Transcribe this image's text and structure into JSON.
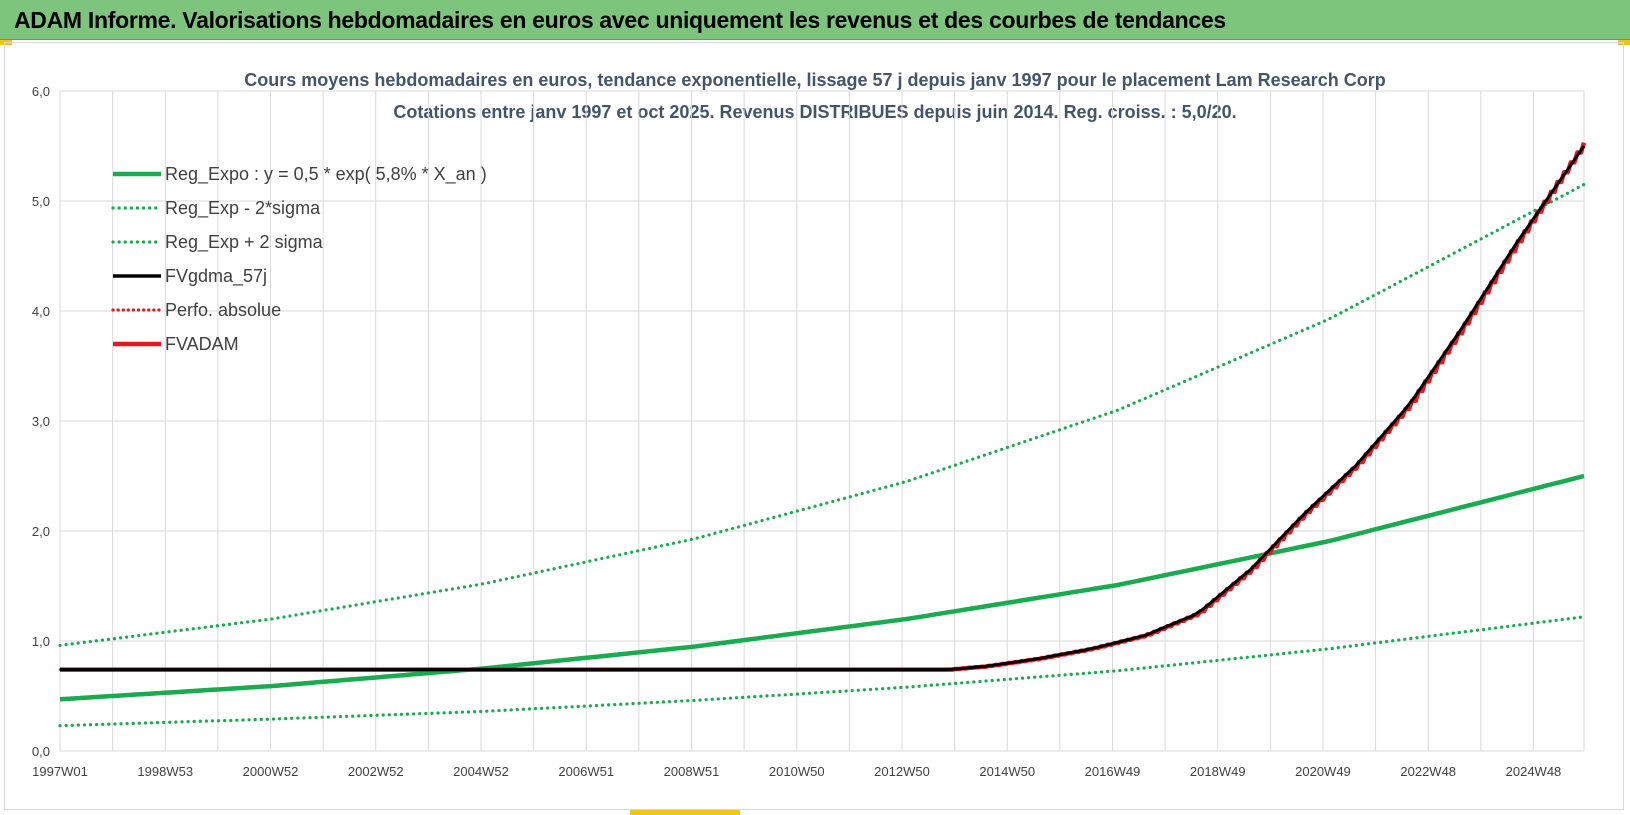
{
  "header": {
    "title": "ADAM Informe. Valorisations hebdomadaires en euros avec uniquement les revenus et des courbes de tendances"
  },
  "colors": {
    "header_bg": "#7dc47d",
    "green": "#1aaa50",
    "red": "#e31a1c",
    "black": "#000000",
    "title_text": "#44546a"
  },
  "chart_data": {
    "type": "line",
    "title": "Cours moyens hebdomadaires en euros, tendance exponentielle, lissage 57 j depuis janv 1997 pour le placement Lam Research Corp",
    "subtitle": "Cotations entre janv 1997 et oct 2025. Revenus DISTRIBUES depuis juin 2014. Reg. croiss. : 5,0/20.",
    "xlabel": "",
    "ylabel": "",
    "x_range": [
      1997.0,
      2025.8
    ],
    "ylim": [
      0,
      6
    ],
    "y_ticks": [
      "0,0",
      "1,0",
      "2,0",
      "3,0",
      "4,0",
      "5,0",
      "6,0"
    ],
    "x_tick_labels": [
      "1997W01",
      "1998W53",
      "2000W52",
      "2002W52",
      "2004W52",
      "2006W51",
      "2008W51",
      "2010W50",
      "2012W50",
      "2014W50",
      "2016W49",
      "2018W49",
      "2020W49",
      "2022W48",
      "2024W48"
    ],
    "grid": true,
    "legend_position": "top-left",
    "series": [
      {
        "name": "Reg_Expo : y = 0,5 * exp( 5,8% *  X_an )",
        "style": "solid",
        "color": "#1aaa50",
        "x": [
          1997.0,
          2001.0,
          2005.0,
          2009.0,
          2013.0,
          2017.0,
          2021.0,
          2025.8
        ],
        "values": [
          0.47,
          0.59,
          0.75,
          0.95,
          1.2,
          1.51,
          1.91,
          2.5
        ]
      },
      {
        "name": "Reg_Exp - 2*sigma",
        "style": "dotted",
        "color": "#1aaa50",
        "x": [
          1997.0,
          2001.0,
          2005.0,
          2009.0,
          2013.0,
          2017.0,
          2021.0,
          2025.8
        ],
        "values": [
          0.23,
          0.29,
          0.36,
          0.46,
          0.58,
          0.73,
          0.93,
          1.22
        ]
      },
      {
        "name": "Reg_Exp + 2 sigma",
        "style": "dotted",
        "color": "#1aaa50",
        "x": [
          1997.0,
          2001.0,
          2005.0,
          2009.0,
          2013.0,
          2017.0,
          2021.0,
          2025.8
        ],
        "values": [
          0.96,
          1.2,
          1.52,
          1.93,
          2.45,
          3.1,
          3.93,
          5.15
        ]
      },
      {
        "name": "FVgdma_57j",
        "style": "solid",
        "color": "#000000",
        "x": [
          1997.0,
          2013.8,
          2014.5,
          2015.5,
          2016.5,
          2017.5,
          2018.5,
          2019.5,
          2020.5,
          2021.5,
          2022.5,
          2023.5,
          2024.5,
          2025.8
        ],
        "values": [
          0.74,
          0.74,
          0.77,
          0.84,
          0.93,
          1.05,
          1.25,
          1.65,
          2.15,
          2.6,
          3.15,
          3.85,
          4.6,
          5.5
        ]
      },
      {
        "name": "Perfo. absolue",
        "style": "dotted",
        "color": "#e31a1c",
        "x": [
          1997.0,
          2013.8,
          2014.5,
          2015.5,
          2016.5,
          2017.5,
          2018.5,
          2019.5,
          2020.5,
          2021.5,
          2022.5,
          2023.5,
          2024.5,
          2025.8
        ],
        "values": [
          0.74,
          0.74,
          0.77,
          0.84,
          0.93,
          1.05,
          1.25,
          1.65,
          2.15,
          2.6,
          3.15,
          3.85,
          4.6,
          5.5
        ]
      },
      {
        "name": "FVADAM",
        "style": "thick",
        "color": "#e31a1c",
        "x": [
          1997.0,
          2013.8,
          2014.5,
          2015.5,
          2016.5,
          2017.5,
          2018.5,
          2019.5,
          2020.5,
          2021.5,
          2022.5,
          2023.5,
          2024.5,
          2025.8
        ],
        "values": [
          0.74,
          0.74,
          0.77,
          0.84,
          0.93,
          1.05,
          1.25,
          1.65,
          2.15,
          2.6,
          3.15,
          3.85,
          4.6,
          5.53
        ]
      }
    ]
  }
}
